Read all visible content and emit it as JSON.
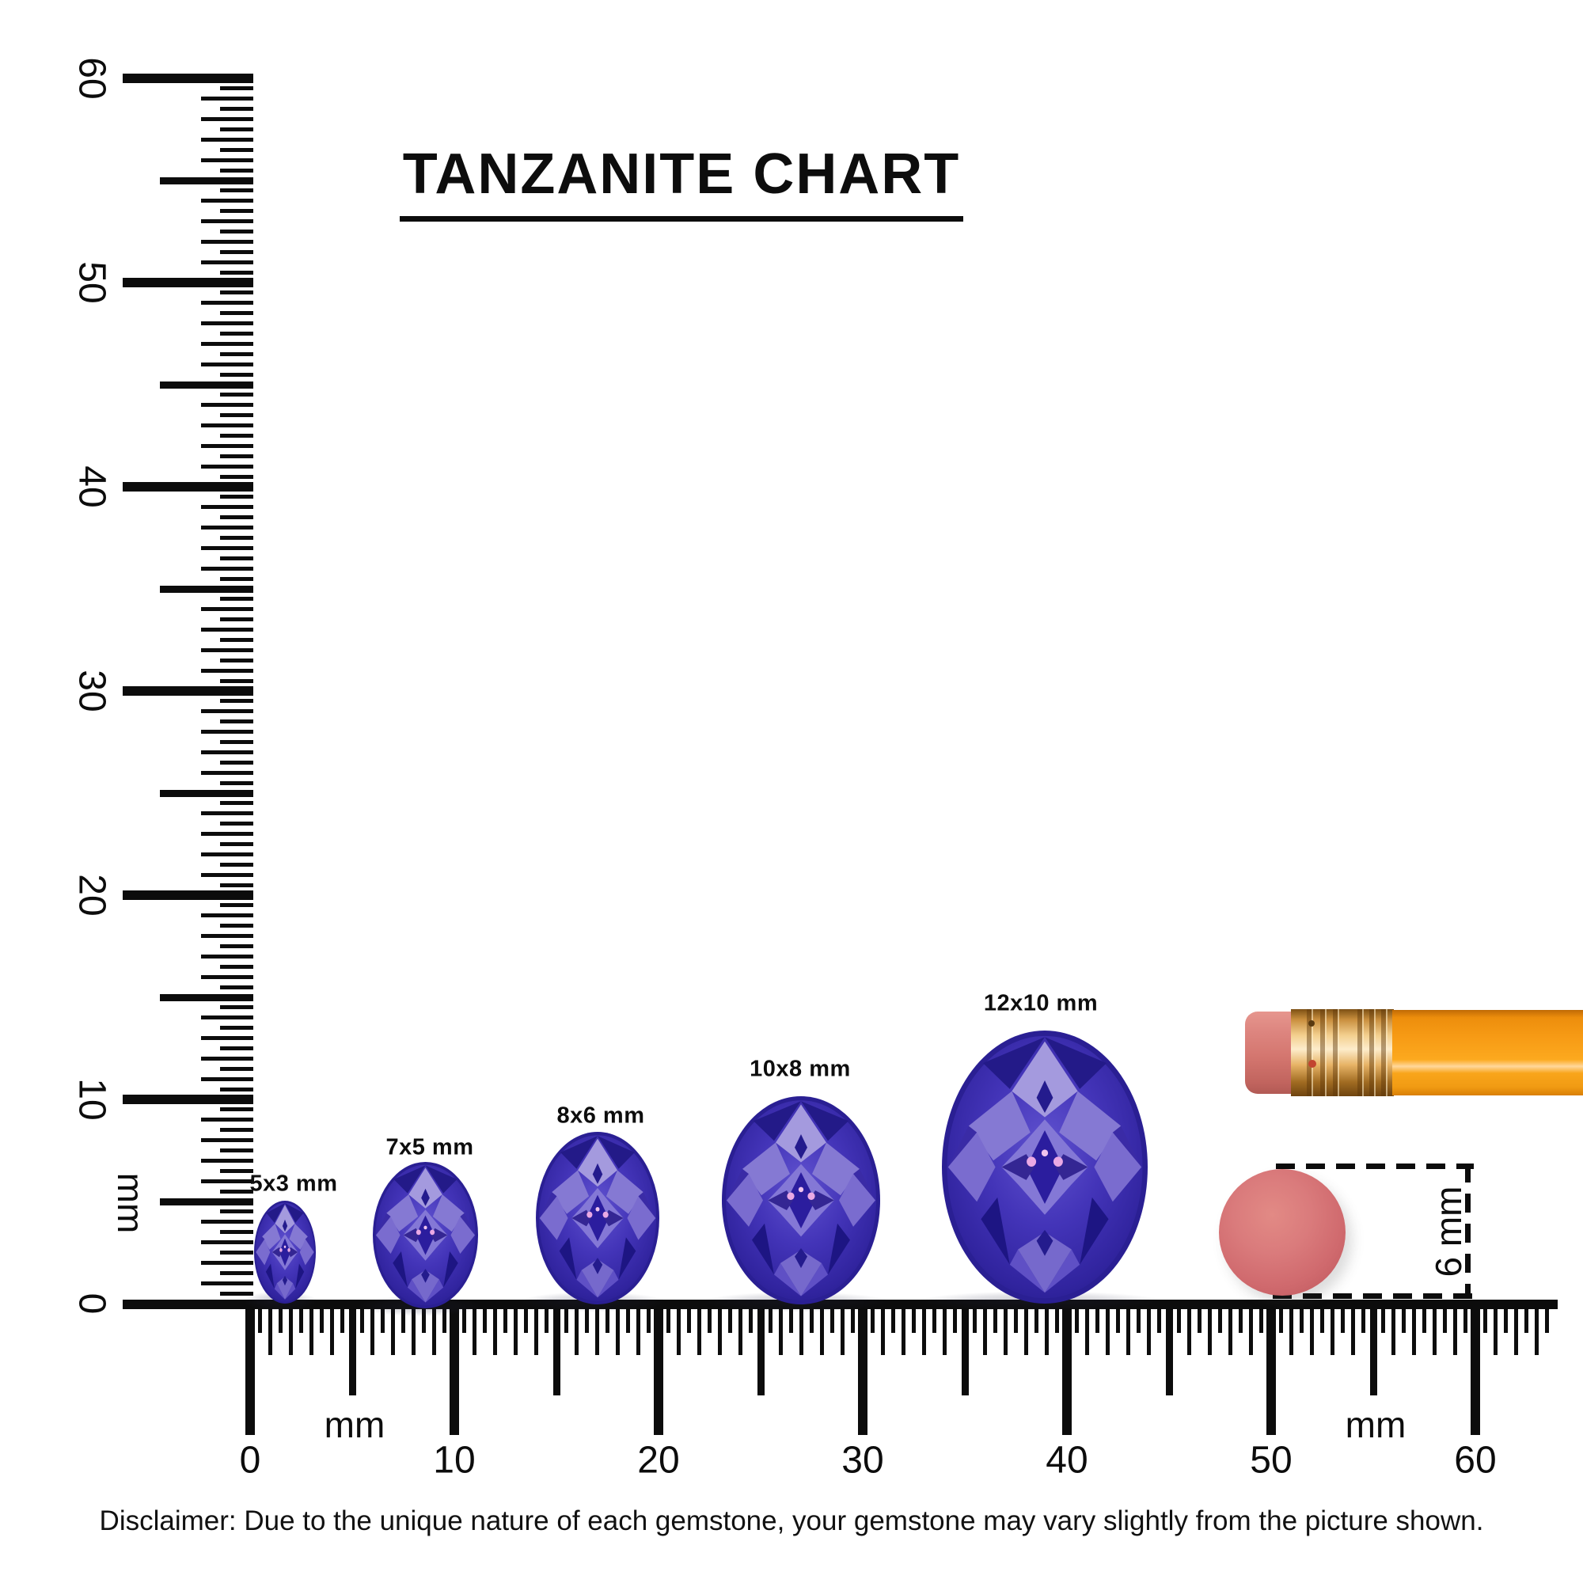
{
  "title": {
    "text": "TANZANITE CHART"
  },
  "rulers": {
    "vertical": {
      "unit_label": "mm",
      "tick_labels": [
        "0",
        "10",
        "20",
        "30",
        "40",
        "50",
        "60"
      ]
    },
    "horizontal": {
      "unit_label_left": "mm",
      "unit_label_right": "mm",
      "tick_labels": [
        "0",
        "10",
        "20",
        "30",
        "40",
        "50",
        "60"
      ]
    }
  },
  "gems": [
    {
      "label": "5x3 mm",
      "length_mm": 5,
      "width_mm": 3
    },
    {
      "label": "7x5 mm",
      "length_mm": 7,
      "width_mm": 5
    },
    {
      "label": "8x6 mm",
      "length_mm": 8,
      "width_mm": 6
    },
    {
      "label": "10x8 mm",
      "length_mm": 10,
      "width_mm": 8
    },
    {
      "label": "12x10 mm",
      "length_mm": 12,
      "width_mm": 10
    }
  ],
  "reference_objects": {
    "eraser_circle": {
      "measure_label": "6 mm",
      "diameter_mm": 6
    }
  },
  "disclaimer": "Disclaimer: Due to the unique nature of each gemstone, your gemstone may vary slightly from the picture shown.",
  "colors": {
    "ink": "#0c0c0c",
    "gem_primary": "#4334b8",
    "gem_dark": "#241b8b",
    "gem_light_facet": "#a49ade",
    "pencil_orange": "#f79b15",
    "pencil_ferrule_gold": "#f3cf8e",
    "pencil_eraser_pink": "#d4766f",
    "round_eraser_pink": "#d06a6e"
  },
  "chart_data": {
    "type": "table",
    "title": "TANZANITE CHART",
    "columns": [
      "size_label",
      "length_mm",
      "width_mm"
    ],
    "rows": [
      [
        "5x3 mm",
        5,
        3
      ],
      [
        "7x5 mm",
        7,
        5
      ],
      [
        "8x6 mm",
        8,
        6
      ],
      [
        "10x8 mm",
        10,
        8
      ],
      [
        "12x10 mm",
        12,
        10
      ]
    ],
    "x_axis": {
      "label": "mm",
      "range": [
        0,
        60
      ],
      "tick_step": 10,
      "minor_tick_step": 0.5
    },
    "y_axis": {
      "label": "mm",
      "range": [
        0,
        60
      ],
      "tick_step": 10,
      "minor_tick_step": 0.5
    },
    "reference_object_diameter": {
      "label": "6 mm",
      "value_mm": 6
    },
    "legend_position": "none",
    "grid": false
  }
}
